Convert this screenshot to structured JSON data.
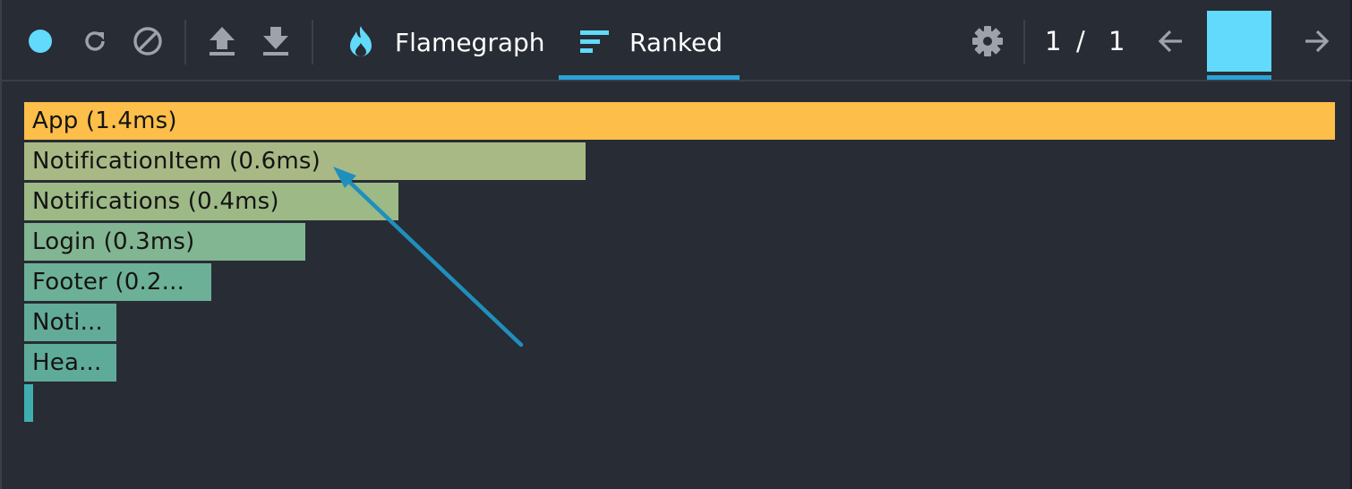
{
  "toolbar": {
    "record_icon": "record-dot-icon",
    "reload_icon": "reload-icon",
    "clear_icon": "clear-icon",
    "upload_icon": "upload-icon",
    "download_icon": "download-icon",
    "tabs": [
      {
        "label": "Flamegraph",
        "icon": "flame-icon",
        "selected": false
      },
      {
        "label": "Ranked",
        "icon": "ranked-icon",
        "selected": true
      }
    ],
    "settings_icon": "gear-icon",
    "commit_index": "1",
    "commit_separator": "/",
    "commit_total": "1",
    "prev_icon": "arrow-left-icon",
    "next_icon": "arrow-right-icon",
    "commit_bar_color": "#61dafb"
  },
  "colors": {
    "background": "#282c34",
    "accent": "#2aa2d9",
    "annotation_arrow": "#1f8fbc"
  },
  "chart_data": {
    "type": "bar",
    "orientation": "horizontal",
    "title": "",
    "xlabel": "",
    "ylabel": "",
    "categories": [
      "App (1.4ms)",
      "NotificationItem (0.6ms)",
      "Notifications (0.4ms)",
      "Login (0.3ms)",
      "Footer (0.2...",
      "Noti...",
      "Hea...",
      ""
    ],
    "values": [
      1.4,
      0.6,
      0.4,
      0.3,
      0.2,
      0.1,
      0.1,
      0.01
    ],
    "colors": [
      "#fdbe4a",
      "#a9b985",
      "#9db986",
      "#82b591",
      "#6db098",
      "#62ab99",
      "#5fab99",
      "#40aeb0"
    ],
    "xlim": [
      0,
      1.4
    ],
    "grid": false,
    "legend": "none",
    "annotation": "arrow pointing to NotificationItem bar"
  }
}
